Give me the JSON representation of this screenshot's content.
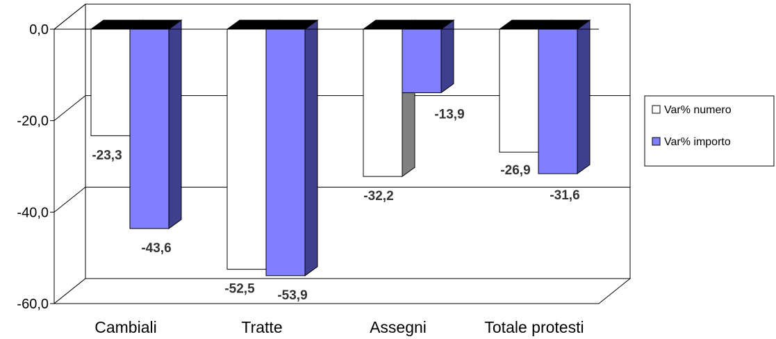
{
  "chart_data": {
    "type": "bar",
    "categories": [
      "Cambiali",
      "Tratte",
      "Assegni",
      "Totale protesti"
    ],
    "series": [
      {
        "name": "Var% numero",
        "values": [
          -23.3,
          -52.5,
          -32.2,
          -26.9
        ],
        "labels": [
          "-23,3",
          "-52,5",
          "-32,2",
          "-26,9"
        ]
      },
      {
        "name": "Var% importo",
        "values": [
          -43.6,
          -53.9,
          -13.9,
          -31.6
        ],
        "labels": [
          "-43,6",
          "-53,9",
          "-13,9",
          "-31,6"
        ]
      }
    ],
    "ylim": [
      -60,
      0
    ],
    "yticks": [
      0,
      -20,
      -40,
      -60
    ],
    "ytick_labels": [
      "0,0",
      "-20,0",
      "-40,0",
      "-60,0"
    ],
    "grid": true,
    "legend": "right",
    "three_d": true,
    "colors": {
      "numero_front": "#FFFFFF",
      "numero_side": "#808080",
      "importo_front": "#8080FF",
      "importo_side": "#3F3F8F",
      "top": "#000000",
      "wall": "#FFFFFF",
      "floor": "#FFFFFF",
      "label": "#333333"
    }
  }
}
